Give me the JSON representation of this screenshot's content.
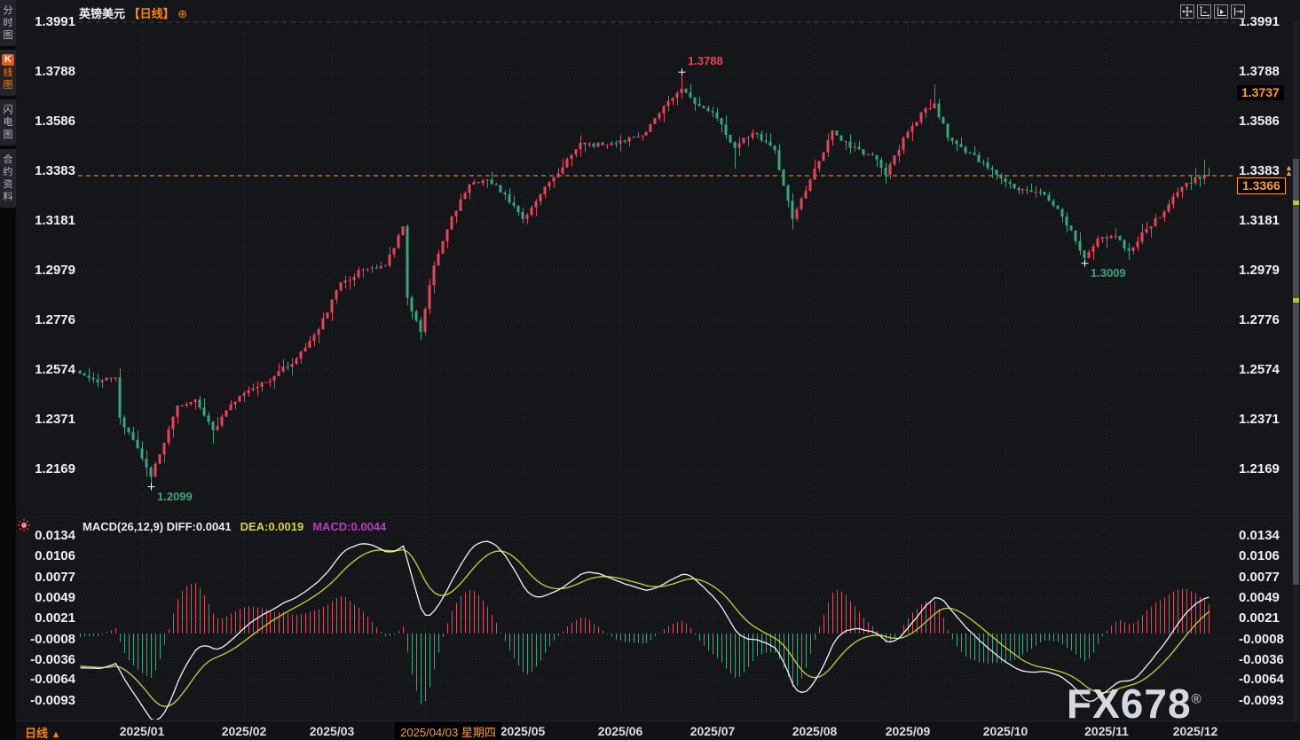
{
  "header": {
    "symbol": "英镑美元",
    "period_tag": "【日线】",
    "settings_icon": "⊕"
  },
  "sidebar": {
    "items": [
      {
        "id": "timeshare",
        "label": "分时图",
        "active": false
      },
      {
        "id": "kline",
        "label": "K线图",
        "active": true
      },
      {
        "id": "lightning",
        "label": "闪电图",
        "active": false
      },
      {
        "id": "contract-info",
        "label": "合约资料",
        "active": false
      }
    ]
  },
  "toolbar": {
    "icons": [
      "crosshair",
      "axis-scale",
      "axis-auto-fit",
      "go-to-latest"
    ]
  },
  "price_axis": {
    "ticks": [
      "1.3991",
      "1.3788",
      "1.3586",
      "1.3383",
      "1.3181",
      "1.2979",
      "1.2776",
      "1.2574",
      "1.2371",
      "1.2169"
    ],
    "high_marker_label": "1.3737",
    "current_price_label": "1.3366",
    "arrow_at_tick": "1.3383"
  },
  "macd_axis": {
    "ticks": [
      "0.0134",
      "0.0106",
      "0.0077",
      "0.0049",
      "0.0021",
      "-0.0008",
      "-0.0036",
      "-0.0064",
      "-0.0093"
    ]
  },
  "macd_header": {
    "name": "MACD(26,12,9)",
    "diff": "DIFF:0.0041",
    "dea": "DEA:0.0019",
    "macd": "MACD:0.0044"
  },
  "time_axis": {
    "months": [
      "2025/01",
      "2025/02",
      "2025/03",
      "2025/04",
      "2025/05",
      "2025/06",
      "2025/07",
      "2025/08",
      "2025/09",
      "2025/10",
      "2025/11",
      "2025/12"
    ],
    "highlighted_date": "2025/04/03 星期四"
  },
  "footer": {
    "period": "日线",
    "arrow": "▲"
  },
  "watermark": {
    "text": "FX678",
    "reg": "®"
  },
  "annotations": [
    {
      "text": "1.3788",
      "price": 1.3788,
      "candle_index": 136,
      "direction": "high",
      "placement": "above"
    },
    {
      "text": "1.2099",
      "price": 1.2099,
      "candle_index": 16,
      "direction": "low",
      "placement": "below"
    },
    {
      "text": "1.3009",
      "price": 1.3009,
      "candle_index": 227,
      "direction": "low",
      "placement": "below"
    }
  ],
  "levels": {
    "current_price": 1.3366,
    "session_high_marker": 1.3737
  },
  "colors": {
    "up": "#e84458",
    "down": "#35a77e",
    "accent_orange": "#ff9d2e",
    "title_orange": "#ff8400",
    "diff_line": "#f2f4f7",
    "dea_line": "#ccd32f",
    "macd_value": "#c435c4",
    "background": "#15161a",
    "axis_text": "#eef0f4"
  },
  "chart_data": {
    "type": "candlestick",
    "symbol": "GBPUSD",
    "title": "英镑美元 日线",
    "x_range": {
      "start": "2024-12-12",
      "end": "2025-12-04",
      "frequency": "weekdays"
    },
    "y_axis_ticks": [
      1.3991,
      1.3788,
      1.3586,
      1.3383,
      1.3181,
      1.2979,
      1.2776,
      1.2574,
      1.2371,
      1.2169
    ],
    "close_keypoints": [
      [
        0,
        1.256
      ],
      [
        4,
        1.2525
      ],
      [
        8,
        1.2545
      ],
      [
        9,
        1.238
      ],
      [
        12,
        1.229
      ],
      [
        16,
        1.214
      ],
      [
        18,
        1.223
      ],
      [
        22,
        1.243
      ],
      [
        26,
        1.2455
      ],
      [
        30,
        1.233
      ],
      [
        34,
        1.2435
      ],
      [
        39,
        1.25
      ],
      [
        44,
        1.255
      ],
      [
        49,
        1.262
      ],
      [
        54,
        1.274
      ],
      [
        59,
        1.293
      ],
      [
        64,
        1.2985
      ],
      [
        69,
        1.3
      ],
      [
        73,
        1.316
      ],
      [
        74,
        1.287
      ],
      [
        77,
        1.273
      ],
      [
        80,
        1.3
      ],
      [
        84,
        1.32
      ],
      [
        88,
        1.333
      ],
      [
        92,
        1.335
      ],
      [
        96,
        1.329
      ],
      [
        100,
        1.319
      ],
      [
        104,
        1.329
      ],
      [
        109,
        1.34
      ],
      [
        113,
        1.35
      ],
      [
        118,
        1.349
      ],
      [
        122,
        1.351
      ],
      [
        127,
        1.353
      ],
      [
        131,
        1.362
      ],
      [
        136,
        1.372
      ],
      [
        140,
        1.365
      ],
      [
        144,
        1.36
      ],
      [
        148,
        1.348
      ],
      [
        152,
        1.354
      ],
      [
        157,
        1.347
      ],
      [
        161,
        1.319
      ],
      [
        165,
        1.335
      ],
      [
        170,
        1.355
      ],
      [
        174,
        1.348
      ],
      [
        179,
        1.345
      ],
      [
        182,
        1.337
      ],
      [
        186,
        1.352
      ],
      [
        191,
        1.364
      ],
      [
        193,
        1.366
      ],
      [
        196,
        1.352
      ],
      [
        200,
        1.346
      ],
      [
        204,
        1.342
      ],
      [
        209,
        1.334
      ],
      [
        213,
        1.331
      ],
      [
        217,
        1.33
      ],
      [
        221,
        1.323
      ],
      [
        225,
        1.31
      ],
      [
        227,
        1.303
      ],
      [
        230,
        1.311
      ],
      [
        234,
        1.312
      ],
      [
        237,
        1.306
      ],
      [
        241,
        1.315
      ],
      [
        245,
        1.322
      ],
      [
        248,
        1.33
      ],
      [
        252,
        1.336
      ],
      [
        255,
        1.3366
      ]
    ],
    "special_wicks": [
      {
        "index": 16,
        "low": 1.2099
      },
      {
        "index": 30,
        "low": 1.2275
      },
      {
        "index": 77,
        "low": 1.2697
      },
      {
        "index": 136,
        "high": 1.3788
      },
      {
        "index": 148,
        "low": 1.3395
      },
      {
        "index": 161,
        "low": 1.3148
      },
      {
        "index": 182,
        "low": 1.3333
      },
      {
        "index": 193,
        "high": 1.3737
      },
      {
        "index": 227,
        "low": 1.3009
      },
      {
        "index": 254,
        "high": 1.3431
      }
    ],
    "last_close": 1.3366,
    "dashed_level": 1.3366,
    "extremes": {
      "period_high": 1.3788,
      "period_low": 1.2099,
      "recent_low": 1.3009
    },
    "prehistory": {
      "days": 34,
      "from": 1.282,
      "to": 1.256
    },
    "macd": {
      "params": [
        26,
        12,
        9
      ],
      "y_ticks": [
        0.0134,
        0.0106,
        0.0077,
        0.0049,
        0.0021,
        -0.0008,
        -0.0036,
        -0.0064,
        -0.0093
      ],
      "last_diff": 0.0041,
      "last_dea": 0.0019,
      "last_macd": 0.0044,
      "histogram_formula": "2*(DIFF-DEA)"
    }
  }
}
